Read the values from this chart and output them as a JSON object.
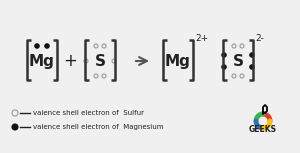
{
  "bg_color": "#f0f0f0",
  "text_color": "#222222",
  "bracket_color": "#333333",
  "mg1_label": "Mg",
  "s1_label": "S",
  "mg2_label": "Mg",
  "s2_label": "S",
  "legend_open_label": "valence shell electron of  Sulfur",
  "legend_filled_label": "valence shell electron of  Magnesium",
  "geeks_label": "GEEKS",
  "arrow_color": "#555555",
  "dot_open_color": "#999999",
  "dot_filled_color": "#111111",
  "logo_colors": [
    "#e63c2f",
    "#3cb34a",
    "#2e75b6",
    "#ffc000"
  ]
}
